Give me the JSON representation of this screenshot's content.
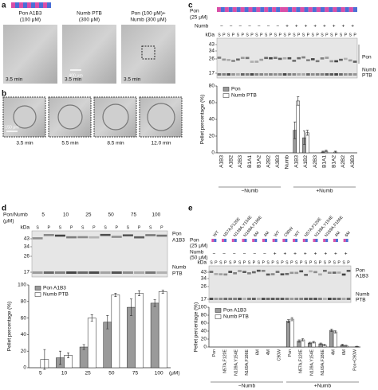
{
  "panels": {
    "a": {
      "label": "a",
      "conditions": [
        {
          "name": "Pon A1B3",
          "line2": "(100 μM)",
          "time": "3.5 min"
        },
        {
          "name": "Numb PTB",
          "line2": "(300 μM)",
          "time": "3.5 min"
        },
        {
          "name": "Pon (100 μM)+",
          "line2": "Numb (300 μM)",
          "time": "3.5 min"
        }
      ],
      "scale_bar": "400 μm"
    },
    "b": {
      "label": "b",
      "times": [
        "3.5 min",
        "5.5 min",
        "8.5 min",
        "12.0 min"
      ],
      "scale_bar": "150 μm"
    },
    "c": {
      "label": "c",
      "pon_label": "Pon",
      "pon_conc": "(25 μM)",
      "numb_label": "Numb",
      "numb_signs": [
        "−",
        "−",
        "−",
        "−",
        "−",
        "−",
        "−",
        "+",
        "+",
        "+",
        "+",
        "+",
        "+",
        "+",
        "+"
      ],
      "lanes": [
        "S",
        "P",
        "S",
        "P",
        "S",
        "P",
        "S",
        "P",
        "S",
        "P",
        "S",
        "P",
        "S",
        "P",
        "S",
        "P",
        "S",
        "P",
        "S",
        "P",
        "S",
        "P",
        "S",
        "P",
        "S",
        "P",
        "S",
        "P",
        "S",
        "P"
      ],
      "kda_title": "kDa",
      "kda": [
        "43",
        "34",
        "26",
        "17"
      ],
      "side_labels": [
        "Pon",
        "Numb",
        "PTB"
      ]
    },
    "d": {
      "label": "d",
      "header": "Pon/Numb",
      "header_unit": "(μM)",
      "concentrations": [
        "5",
        "10",
        "25",
        "50",
        "75",
        "100"
      ],
      "lanes": [
        "S",
        "P",
        "S",
        "P",
        "S",
        "P",
        "S",
        "P",
        "S",
        "P",
        "S",
        "P"
      ],
      "kda_title": "kDa",
      "kda": [
        "43",
        "34",
        "26",
        "17"
      ],
      "side_labels": [
        "Pon",
        "A1B3",
        "Numb",
        "PTB"
      ]
    },
    "e": {
      "label": "e",
      "pon_label": "Pon",
      "pon_conc": "(25 μM)",
      "numb_label": "Numb",
      "numb_conc": "(50 μM)",
      "variants": [
        "WT",
        "N57A,F120E",
        "N139A,Y154E",
        "N169A,F186E",
        "6M",
        "4M",
        "WT",
        "C90W",
        "WT",
        "N57A,F120E",
        "N139A,Y154E",
        "N169A,F186E",
        "4M",
        "6M"
      ],
      "numb_signs": [
        "−",
        "−",
        "−",
        "−",
        "−",
        "−",
        "+",
        "+",
        "+",
        "+",
        "+",
        "+",
        "+",
        "+"
      ],
      "lanes": [
        "S",
        "P",
        "S",
        "P",
        "S",
        "P",
        "S",
        "P",
        "S",
        "P",
        "S",
        "P",
        "S",
        "P",
        "S",
        "P",
        "S",
        "P",
        "S",
        "P",
        "S",
        "P",
        "S",
        "P",
        "S",
        "P",
        "S",
        "P",
        "S",
        "P"
      ],
      "kda_title": "kDa",
      "kda": [
        "43",
        "34",
        "26",
        "17"
      ],
      "side_labels": [
        "Pon",
        "A1B3",
        "Numb",
        "PTB"
      ]
    }
  },
  "chart_data": [
    {
      "type": "bar",
      "y_label": "Pellet percentage (%)",
      "categories": [
        "A1B3",
        "A1B2",
        "A2B3",
        "B1A1",
        "B1A2",
        "A2B2",
        "A3B3",
        "Numb",
        "A1B3",
        "A1B2",
        "A2B3",
        "B1A1",
        "B1A2",
        "A2B2",
        "A3B3"
      ],
      "series": [
        {
          "name": "Pon",
          "color": "#9a9a9a",
          "values": [
            0,
            0,
            0,
            0,
            0,
            0,
            0,
            0,
            27,
            18,
            0,
            1,
            0,
            0,
            0
          ],
          "errors": [
            0,
            0,
            0,
            0,
            0,
            0,
            0,
            0,
            10,
            8,
            0,
            1,
            0,
            0,
            0
          ]
        },
        {
          "name": "Numb PTB",
          "color": "#ffffff",
          "values": [
            0,
            0,
            0,
            0,
            0,
            0,
            0,
            0,
            62,
            24,
            0,
            2,
            1,
            0,
            0
          ],
          "errors": [
            0,
            0,
            0,
            0,
            0,
            0,
            0,
            0,
            5,
            3,
            0,
            1,
            1,
            0,
            0
          ]
        }
      ],
      "ylim": [
        0,
        80
      ],
      "yticks": [
        0,
        20,
        40,
        60,
        80
      ],
      "legend": "upper left",
      "group_labels": [
        "−Numb",
        "+Numb"
      ]
    },
    {
      "type": "bar",
      "y_label": "Pellet percentage (%)",
      "x_unit": "(μM)",
      "categories": [
        "5",
        "10",
        "25",
        "50",
        "75",
        "100"
      ],
      "series": [
        {
          "name": "Pon A1B3",
          "color": "#9a9a9a",
          "values": [
            0,
            12,
            25,
            55,
            73,
            78
          ],
          "errors": [
            0,
            8,
            3,
            8,
            10,
            4
          ]
        },
        {
          "name": "Numb PTB",
          "color": "#ffffff",
          "values": [
            10,
            15,
            60,
            88,
            90,
            92
          ],
          "errors": [
            12,
            3,
            4,
            2,
            3,
            2
          ]
        }
      ],
      "ylim": [
        0,
        100
      ],
      "yticks": [
        0,
        20,
        40,
        60,
        80,
        100
      ],
      "legend": "upper left"
    },
    {
      "type": "bar",
      "y_label": "Pellet percentage (%)",
      "categories": [
        "Pon",
        "N57A,F120E",
        "N139A,Y154E",
        "N169A,F186E",
        "6M",
        "4M",
        "C90W",
        "Pon",
        "N57A,F120E",
        "N139A,Y154E",
        "N169A,F186E",
        "4M",
        "6M",
        "Pon+C90W"
      ],
      "series": [
        {
          "name": "Pon A1B3",
          "color": "#9a9a9a",
          "values": [
            0,
            0,
            0,
            0,
            0,
            0,
            0,
            65,
            15,
            10,
            8,
            42,
            5,
            0
          ],
          "errors": [
            0,
            0,
            0,
            0,
            0,
            0,
            0,
            4,
            3,
            2,
            2,
            3,
            2,
            0
          ]
        },
        {
          "name": "Numb PTB",
          "color": "#ffffff",
          "values": [
            0,
            0,
            0,
            0,
            0,
            0,
            0,
            70,
            18,
            12,
            5,
            38,
            3,
            1
          ],
          "errors": [
            0,
            0,
            0,
            0,
            0,
            0,
            0,
            4,
            3,
            2,
            2,
            3,
            2,
            1
          ]
        }
      ],
      "ylim": [
        0,
        100
      ],
      "yticks": [
        0,
        20,
        40,
        60,
        80,
        100
      ],
      "legend": "upper left",
      "group_labels": [
        "−Numb",
        "+Numb"
      ]
    }
  ]
}
